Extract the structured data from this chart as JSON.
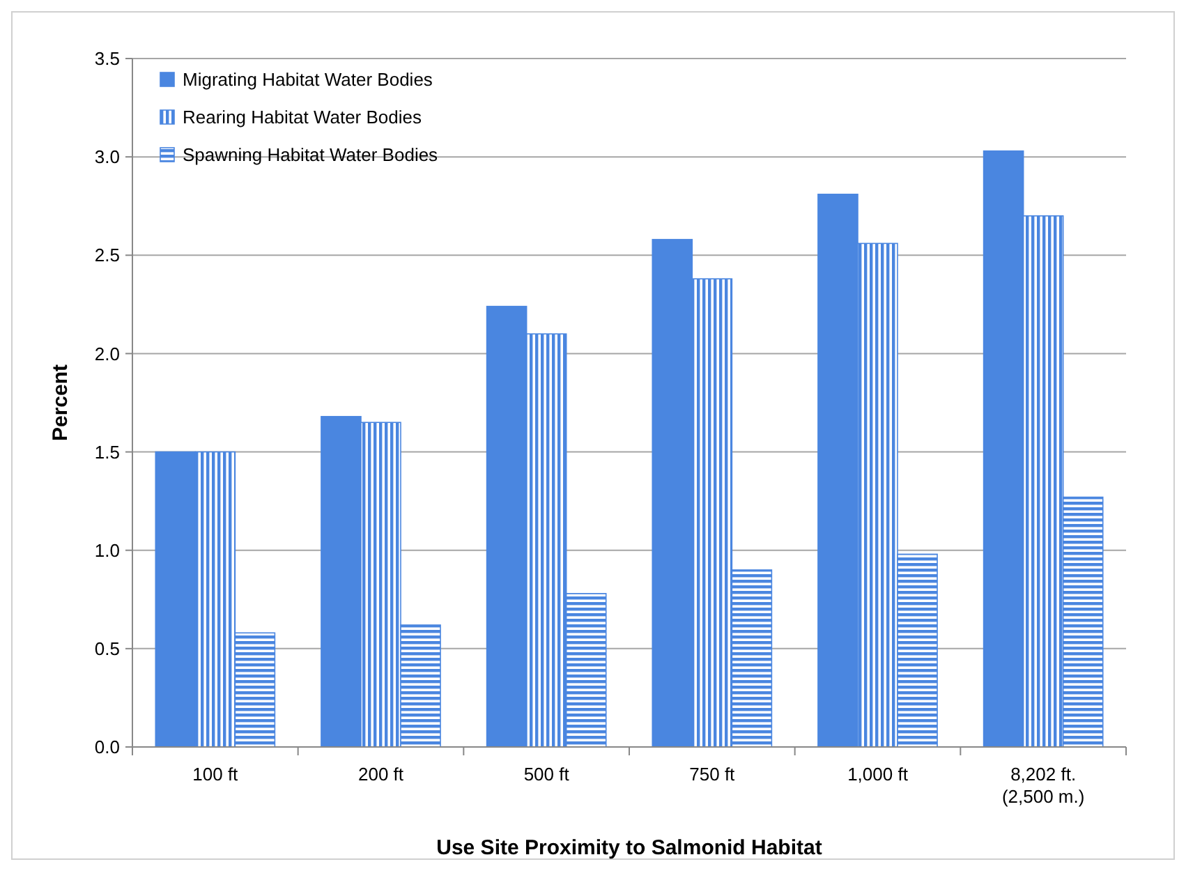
{
  "chart_data": {
    "type": "bar",
    "xlabel": "Use Site Proximity to Salmonid Habitat",
    "ylabel": "Percent",
    "categories": [
      "100 ft",
      "200 ft",
      "500 ft",
      "750 ft",
      "1,000 ft",
      "8,202 ft.\n(2,500 m.)"
    ],
    "series": [
      {
        "name": "Migrating Habitat Water Bodies",
        "color": "#4a86e0",
        "values": [
          1.5,
          1.68,
          2.24,
          2.58,
          2.81,
          3.03
        ]
      },
      {
        "name": "Rearing Habitat Water Bodies",
        "color": "#4a86e0",
        "values": [
          1.5,
          1.65,
          2.1,
          2.38,
          2.56,
          2.7
        ]
      },
      {
        "name": "Spawning Habitat Water Bodies",
        "color": "#4a86e0",
        "values": [
          0.58,
          0.62,
          0.78,
          0.9,
          0.98,
          1.27
        ]
      }
    ],
    "ylim": [
      0,
      3.5
    ],
    "yticks": [
      {
        "value": 0,
        "label": "0.0"
      },
      {
        "value": 0.5,
        "label": "0.5"
      },
      {
        "value": 1,
        "label": "1.0"
      },
      {
        "value": 1.5,
        "label": "1.5"
      },
      {
        "value": 2,
        "label": "2.0"
      },
      {
        "value": 2.5,
        "label": "2.5"
      },
      {
        "value": 3,
        "label": "3.0"
      },
      {
        "value": 3.5,
        "label": "3.5"
      }
    ],
    "grid": "y",
    "legend": "top left"
  }
}
